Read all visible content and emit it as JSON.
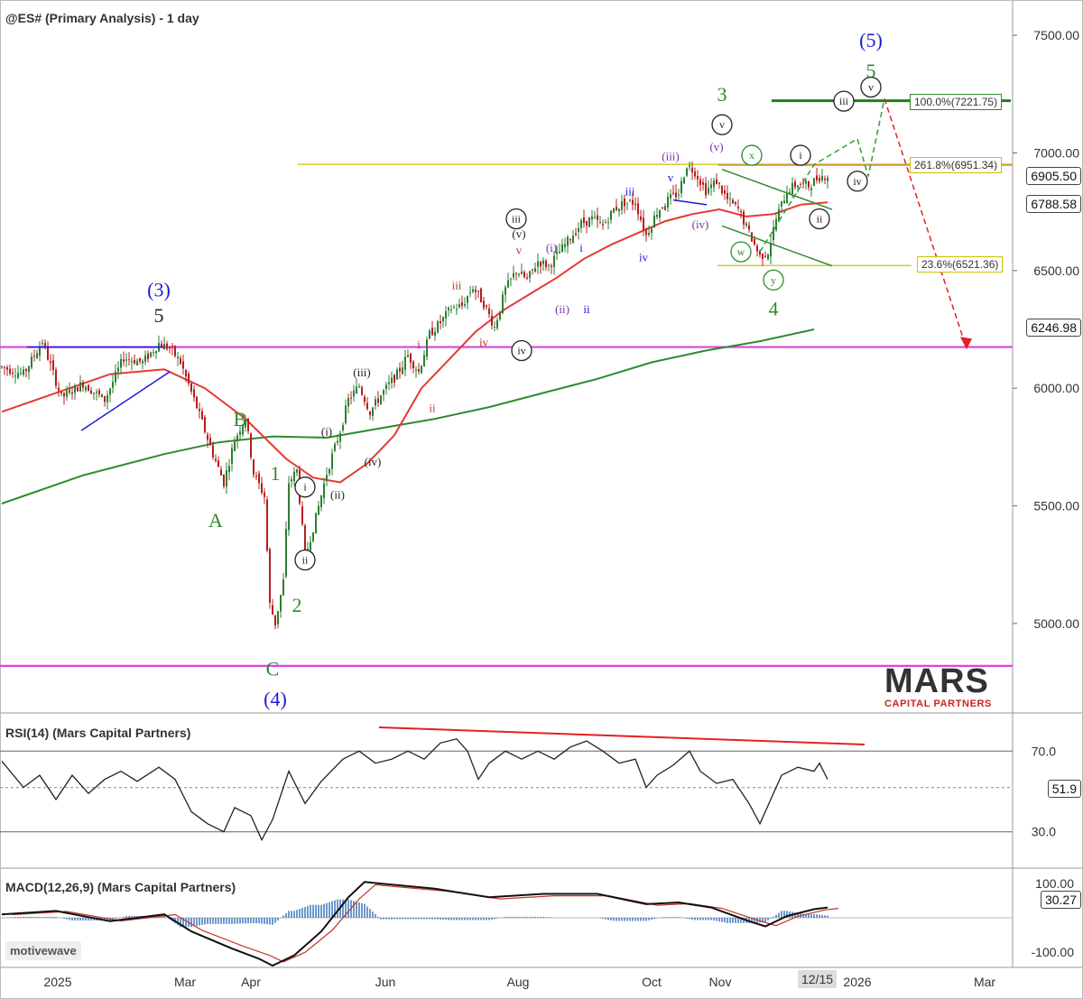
{
  "title": "@ES# (Primary Analysis) - 1 day",
  "rsi_title": "RSI(14) (Mars Capital Partners)",
  "macd_title": "MACD(12,26,9) (Mars Capital Partners)",
  "logo": {
    "main": "MARS",
    "sub": "CAPITAL PARTNERS"
  },
  "watermark": "motivewave",
  "date_marker": "12/15",
  "colors": {
    "price_up": "#2e7d32",
    "price_down": "#b71c1c",
    "ma50": "#e53935",
    "ma200": "#2e8b2e",
    "magenta": "#e040e0",
    "fib": "#c9c200",
    "wave_blue": "#1a1adb",
    "wave_green": "#2e8b2e"
  },
  "price_tags": {
    "last": "6905.50",
    "ma50": "6788.58",
    "level": "6246.98",
    "rsi": "51.9",
    "macd": "30.27"
  },
  "fib_levels": [
    {
      "label": "100.0%(7221.75)",
      "value": 7221.75
    },
    {
      "label": "261.8%(6951.34)",
      "value": 6951.34
    },
    {
      "label": "23.6%(6521.36)",
      "value": 6521.36
    }
  ],
  "chart_data": {
    "type": "candlestick",
    "title": "@ES# (Primary Analysis) - 1 day",
    "y_ticks": [
      "7500.00",
      "7000.00",
      "6500.00",
      "6000.00",
      "5500.00",
      "5000.00"
    ],
    "rsi_ticks": [
      "70.0",
      "30.0"
    ],
    "macd_ticks": [
      "100.00",
      "-100.00"
    ],
    "x_ticks": [
      "2025",
      "Mar",
      "Apr",
      "Jun",
      "Aug",
      "Oct",
      "Nov",
      "2026",
      "Mar"
    ],
    "ylim": [
      4620,
      7650
    ],
    "horizontal_levels": [
      6950,
      6175,
      4820
    ],
    "price_path": [
      [
        0,
        6090
      ],
      [
        8,
        6060
      ],
      [
        15,
        6200
      ],
      [
        22,
        5960
      ],
      [
        30,
        6020
      ],
      [
        38,
        5950
      ],
      [
        45,
        6130
      ],
      [
        52,
        6110
      ],
      [
        58,
        6190
      ],
      [
        62,
        6170
      ],
      [
        66,
        6110
      ],
      [
        72,
        5920
      ],
      [
        78,
        5720
      ],
      [
        82,
        5600
      ],
      [
        86,
        5780
      ],
      [
        90,
        5880
      ],
      [
        93,
        5640
      ],
      [
        97,
        5540
      ],
      [
        99,
        5080
      ],
      [
        101,
        5000
      ],
      [
        104,
        5180
      ],
      [
        106,
        5600
      ],
      [
        109,
        5650
      ],
      [
        112,
        5280
      ],
      [
        116,
        5450
      ],
      [
        120,
        5640
      ],
      [
        125,
        5820
      ],
      [
        128,
        5950
      ],
      [
        132,
        6010
      ],
      [
        136,
        5900
      ],
      [
        140,
        5970
      ],
      [
        146,
        6060
      ],
      [
        150,
        6140
      ],
      [
        154,
        6070
      ],
      [
        158,
        6230
      ],
      [
        162,
        6280
      ],
      [
        166,
        6340
      ],
      [
        170,
        6350
      ],
      [
        174,
        6430
      ],
      [
        178,
        6360
      ],
      [
        182,
        6260
      ],
      [
        186,
        6420
      ],
      [
        190,
        6500
      ],
      [
        194,
        6460
      ],
      [
        198,
        6540
      ],
      [
        202,
        6520
      ],
      [
        206,
        6580
      ],
      [
        210,
        6640
      ],
      [
        214,
        6700
      ],
      [
        218,
        6720
      ],
      [
        222,
        6690
      ],
      [
        226,
        6760
      ],
      [
        230,
        6790
      ],
      [
        234,
        6790
      ],
      [
        238,
        6650
      ],
      [
        242,
        6750
      ],
      [
        246,
        6800
      ],
      [
        250,
        6830
      ],
      [
        253,
        6950
      ],
      [
        256,
        6920
      ],
      [
        260,
        6840
      ],
      [
        264,
        6880
      ],
      [
        268,
        6800
      ],
      [
        272,
        6760
      ],
      [
        276,
        6660
      ],
      [
        280,
        6560
      ],
      [
        283,
        6580
      ],
      [
        286,
        6720
      ],
      [
        290,
        6840
      ],
      [
        294,
        6870
      ],
      [
        298,
        6860
      ],
      [
        302,
        6900
      ],
      [
        305,
        6905
      ]
    ],
    "ma50_path": [
      [
        0,
        5900
      ],
      [
        20,
        5980
      ],
      [
        40,
        6060
      ],
      [
        60,
        6080
      ],
      [
        75,
        6000
      ],
      [
        90,
        5870
      ],
      [
        105,
        5700
      ],
      [
        115,
        5620
      ],
      [
        125,
        5600
      ],
      [
        135,
        5680
      ],
      [
        145,
        5800
      ],
      [
        155,
        6000
      ],
      [
        165,
        6120
      ],
      [
        175,
        6240
      ],
      [
        185,
        6330
      ],
      [
        195,
        6400
      ],
      [
        205,
        6470
      ],
      [
        215,
        6550
      ],
      [
        225,
        6610
      ],
      [
        235,
        6660
      ],
      [
        245,
        6710
      ],
      [
        255,
        6740
      ],
      [
        265,
        6760
      ],
      [
        275,
        6730
      ],
      [
        285,
        6740
      ],
      [
        295,
        6780
      ],
      [
        305,
        6790
      ]
    ],
    "ma200_path": [
      [
        0,
        5510
      ],
      [
        30,
        5630
      ],
      [
        60,
        5720
      ],
      [
        80,
        5770
      ],
      [
        100,
        5795
      ],
      [
        120,
        5790
      ],
      [
        140,
        5830
      ],
      [
        160,
        5870
      ],
      [
        180,
        5920
      ],
      [
        200,
        5980
      ],
      [
        220,
        6040
      ],
      [
        240,
        6110
      ],
      [
        260,
        6160
      ],
      [
        280,
        6200
      ],
      [
        300,
        6250
      ]
    ],
    "projection_path": [
      [
        280,
        6580
      ],
      [
        300,
        6950
      ],
      [
        316,
        7060
      ],
      [
        320,
        6900
      ],
      [
        326,
        7230
      ]
    ],
    "bear_projection_path": [
      [
        326,
        7230
      ],
      [
        356,
        6180
      ]
    ],
    "rsi": {
      "ylim": [
        12,
        88
      ],
      "last": 51.9,
      "path": [
        [
          0,
          65
        ],
        [
          8,
          52
        ],
        [
          14,
          58
        ],
        [
          20,
          46
        ],
        [
          26,
          58
        ],
        [
          32,
          49
        ],
        [
          38,
          56
        ],
        [
          44,
          60
        ],
        [
          50,
          55
        ],
        [
          58,
          62
        ],
        [
          64,
          56
        ],
        [
          70,
          40
        ],
        [
          76,
          34
        ],
        [
          82,
          30
        ],
        [
          86,
          42
        ],
        [
          92,
          38
        ],
        [
          96,
          26
        ],
        [
          100,
          36
        ],
        [
          106,
          60
        ],
        [
          112,
          44
        ],
        [
          118,
          55
        ],
        [
          126,
          66
        ],
        [
          132,
          70
        ],
        [
          138,
          64
        ],
        [
          144,
          66
        ],
        [
          150,
          70
        ],
        [
          156,
          66
        ],
        [
          162,
          74
        ],
        [
          168,
          76
        ],
        [
          172,
          70
        ],
        [
          176,
          56
        ],
        [
          180,
          64
        ],
        [
          186,
          70
        ],
        [
          192,
          66
        ],
        [
          198,
          70
        ],
        [
          204,
          66
        ],
        [
          210,
          72
        ],
        [
          216,
          75
        ],
        [
          222,
          70
        ],
        [
          228,
          64
        ],
        [
          234,
          66
        ],
        [
          238,
          52
        ],
        [
          242,
          58
        ],
        [
          248,
          63
        ],
        [
          254,
          70
        ],
        [
          258,
          60
        ],
        [
          264,
          54
        ],
        [
          270,
          56
        ],
        [
          276,
          44
        ],
        [
          280,
          34
        ],
        [
          284,
          46
        ],
        [
          288,
          58
        ],
        [
          294,
          62
        ],
        [
          300,
          60
        ],
        [
          302,
          64
        ],
        [
          305,
          56
        ]
      ]
    },
    "macd": {
      "ylim": [
        -140,
        140
      ],
      "last": 30.27,
      "path": [
        [
          0,
          10
        ],
        [
          20,
          20
        ],
        [
          40,
          -10
        ],
        [
          60,
          10
        ],
        [
          70,
          -40
        ],
        [
          85,
          -90
        ],
        [
          95,
          -120
        ],
        [
          100,
          -140
        ],
        [
          108,
          -110
        ],
        [
          118,
          -40
        ],
        [
          128,
          60
        ],
        [
          134,
          105
        ],
        [
          140,
          100
        ],
        [
          160,
          85
        ],
        [
          180,
          60
        ],
        [
          200,
          70
        ],
        [
          220,
          70
        ],
        [
          238,
          40
        ],
        [
          250,
          45
        ],
        [
          262,
          30
        ],
        [
          276,
          -10
        ],
        [
          282,
          -25
        ],
        [
          290,
          5
        ],
        [
          300,
          25
        ],
        [
          305,
          30
        ]
      ]
    },
    "wave_labels": [
      {
        "text": "(3)",
        "color": "blue",
        "x": 58,
        "y": 6390
      },
      {
        "text": "5",
        "color": "black",
        "x": 58,
        "y": 6280
      },
      {
        "text": "A",
        "color": "green",
        "x": 79,
        "y": 5410
      },
      {
        "text": "B",
        "color": "green",
        "x": 88,
        "y": 5840
      },
      {
        "text": "1",
        "color": "green",
        "x": 101,
        "y": 5610
      },
      {
        "text": "2",
        "color": "green",
        "x": 109,
        "y": 5050
      },
      {
        "text": "C",
        "color": "green",
        "x": 100,
        "y": 4780
      },
      {
        "text": "(4)",
        "color": "blue",
        "x": 101,
        "y": 4650
      },
      {
        "text": "3",
        "color": "green",
        "x": 266,
        "y": 7220
      },
      {
        "text": "4",
        "color": "green",
        "x": 285,
        "y": 6310
      },
      {
        "text": "5",
        "color": "green",
        "x": 321,
        "y": 7320
      },
      {
        "text": "(5)",
        "color": "blue",
        "x": 321,
        "y": 7450
      },
      {
        "text": "iii",
        "color": "blue",
        "x": 232,
        "y": 6820
      },
      {
        "text": "v",
        "color": "blue",
        "x": 247,
        "y": 6880
      },
      {
        "text": "iv",
        "color": "blue",
        "x": 237,
        "y": 6540
      },
      {
        "text": "i",
        "color": "blue",
        "x": 214,
        "y": 6580
      },
      {
        "text": "ii",
        "color": "blue",
        "x": 216,
        "y": 6320
      },
      {
        "text": "(ii)",
        "color": "purple",
        "x": 207,
        "y": 6320
      },
      {
        "text": "(i)",
        "color": "purple",
        "x": 203,
        "y": 6580
      },
      {
        "text": "(iii)",
        "color": "purple",
        "x": 247,
        "y": 6970
      },
      {
        "text": "(v)",
        "color": "purple",
        "x": 264,
        "y": 7010
      },
      {
        "text": "(iv)",
        "color": "purple",
        "x": 258,
        "y": 6680
      },
      {
        "text": "(v)",
        "color": "black",
        "x": 191,
        "y": 6640
      },
      {
        "text": "(iii)",
        "color": "black",
        "x": 133,
        "y": 6050
      },
      {
        "text": "(iv)",
        "color": "black",
        "x": 137,
        "y": 5670
      },
      {
        "text": "(ii)",
        "color": "black",
        "x": 124,
        "y": 5530
      },
      {
        "text": "(i)",
        "color": "black",
        "x": 120,
        "y": 5800
      },
      {
        "text": "iii",
        "color": "red",
        "x": 168,
        "y": 6420
      },
      {
        "text": "v",
        "color": "red",
        "x": 191,
        "y": 6570
      },
      {
        "text": "iv",
        "color": "red",
        "x": 178,
        "y": 6180
      },
      {
        "text": "i",
        "color": "red",
        "x": 154,
        "y": 6170
      },
      {
        "text": "ii",
        "color": "red",
        "x": 159,
        "y": 5900
      }
    ],
    "circled_labels": [
      {
        "text": "iii",
        "color": "black",
        "x": 190,
        "y": 6720
      },
      {
        "text": "iv",
        "color": "black",
        "x": 192,
        "y": 6160
      },
      {
        "text": "v",
        "color": "black",
        "x": 266,
        "y": 7120
      },
      {
        "text": "i",
        "color": "black",
        "x": 112,
        "y": 5580
      },
      {
        "text": "ii",
        "color": "black",
        "x": 112,
        "y": 5270
      },
      {
        "text": "x",
        "color": "green",
        "x": 277,
        "y": 6990
      },
      {
        "text": "w",
        "color": "green",
        "x": 273,
        "y": 6580
      },
      {
        "text": "y",
        "color": "green",
        "x": 285,
        "y": 6460
      },
      {
        "text": "i",
        "color": "black",
        "x": 295,
        "y": 6990
      },
      {
        "text": "ii",
        "color": "black",
        "x": 302,
        "y": 6720
      },
      {
        "text": "iii",
        "color": "black",
        "x": 311,
        "y": 7220
      },
      {
        "text": "iv",
        "color": "black",
        "x": 316,
        "y": 6880
      },
      {
        "text": "v",
        "color": "black",
        "x": 321,
        "y": 7280
      }
    ]
  }
}
